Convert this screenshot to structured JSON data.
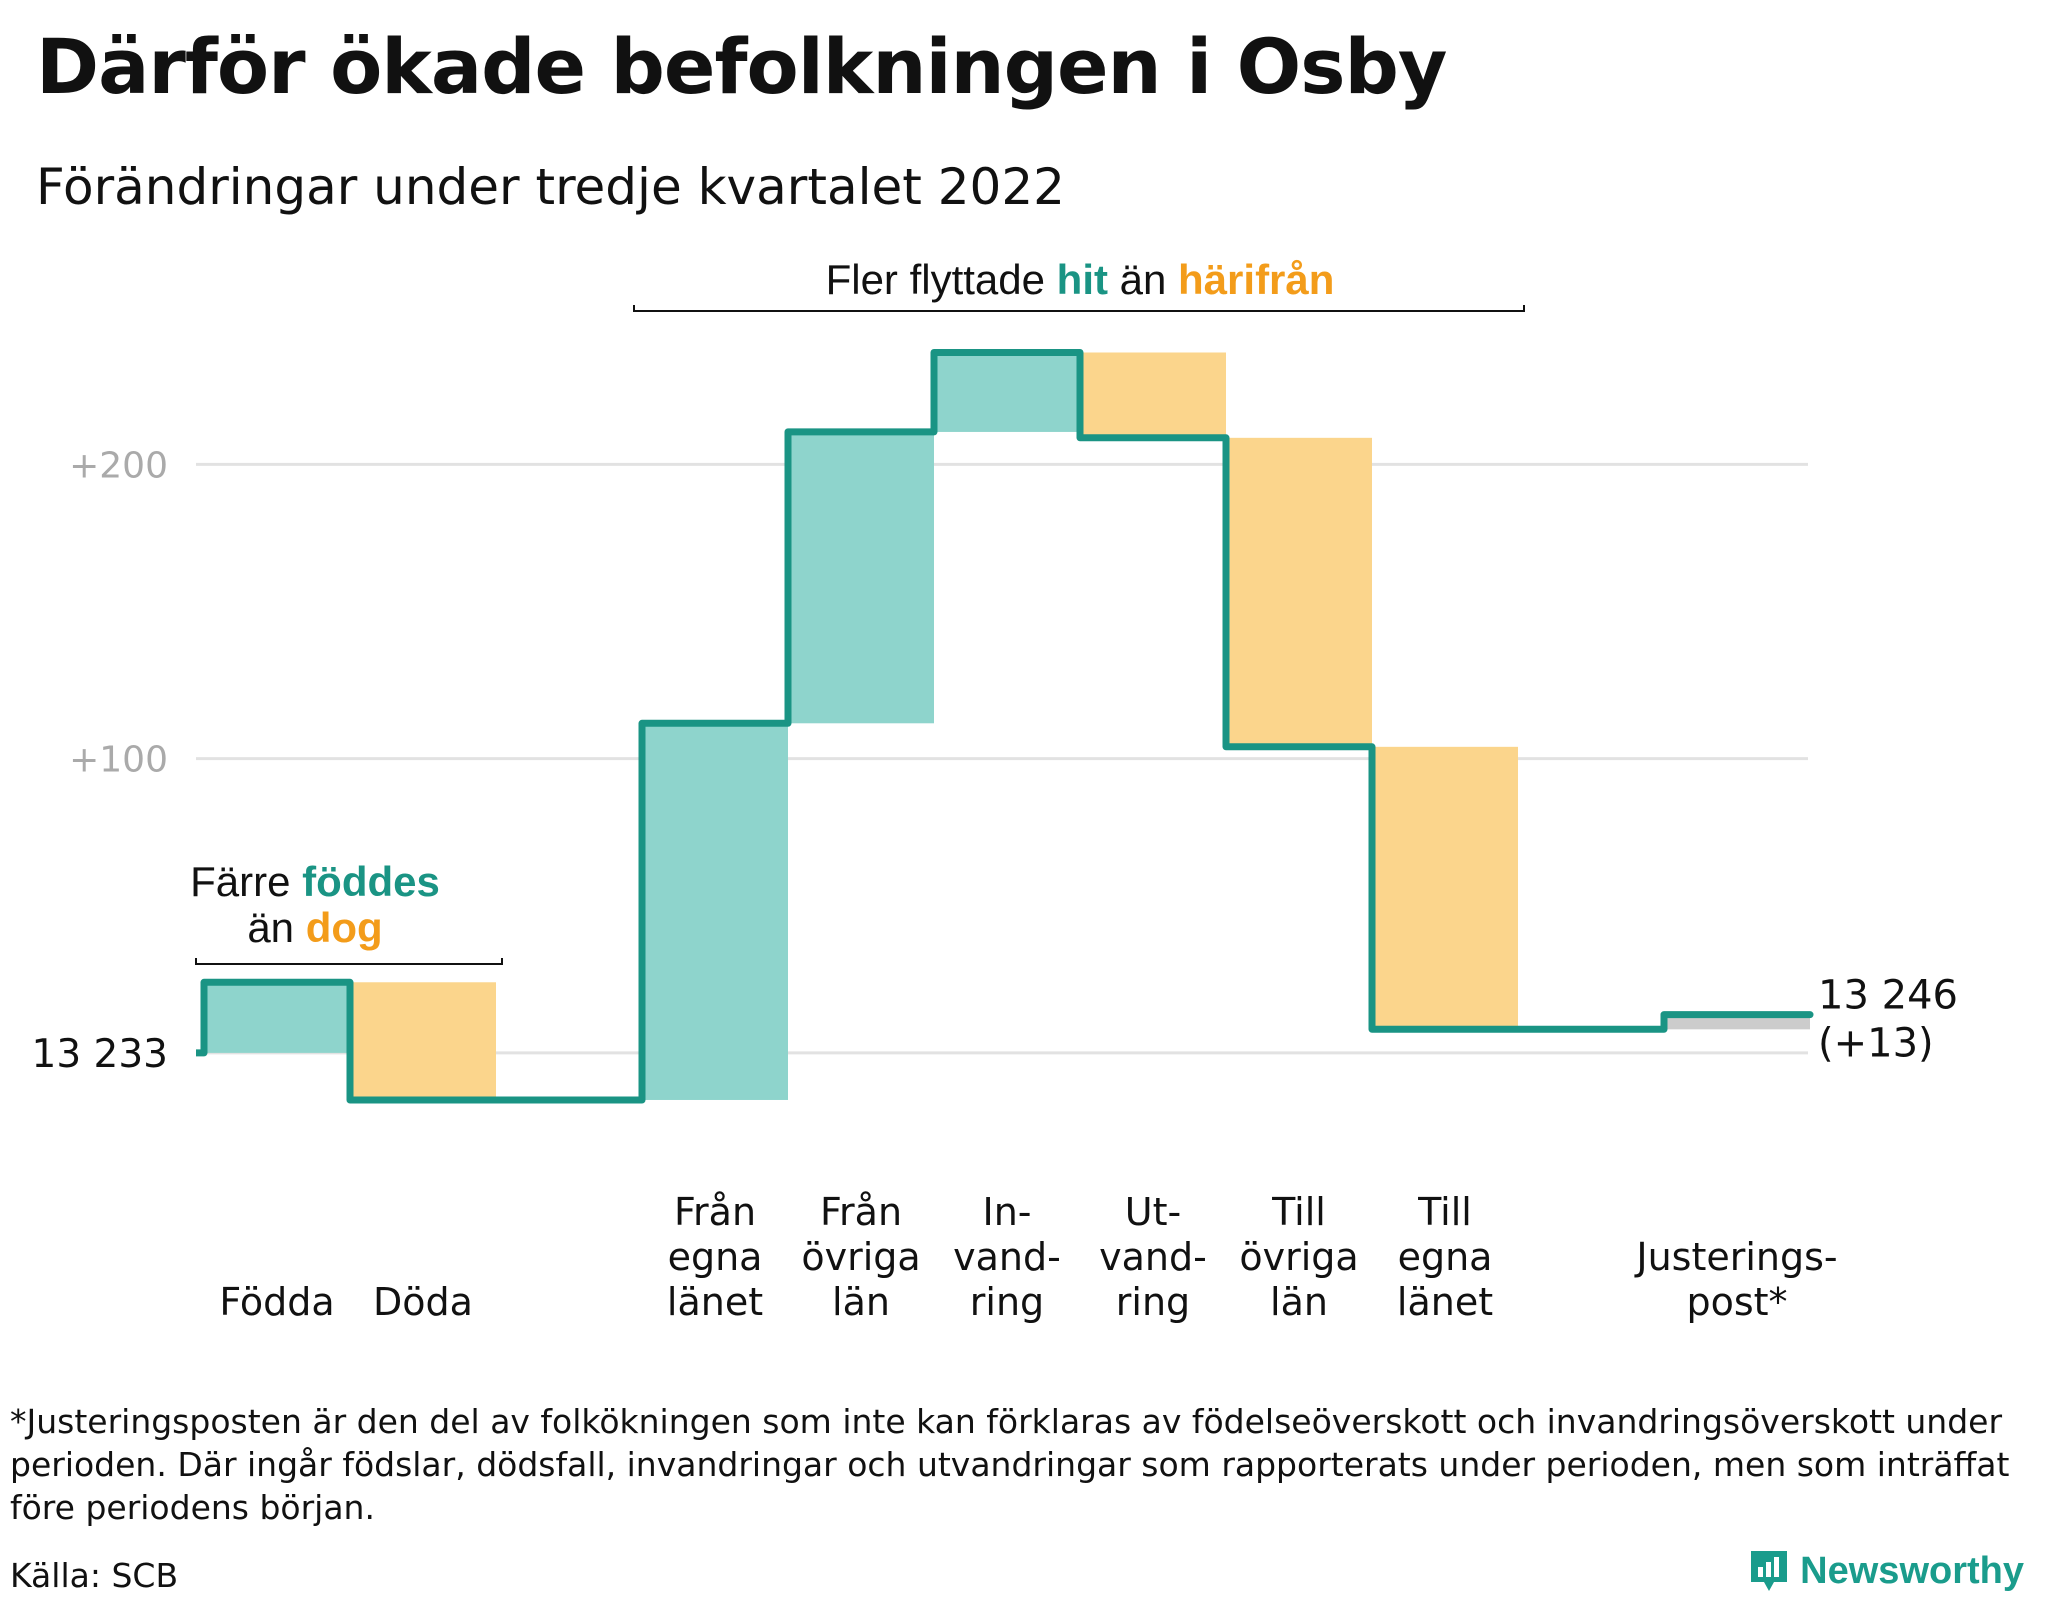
{
  "title": "Därför ökade befolkningen i Osby",
  "subtitle": "Förändringar under tredje kvartalet 2022",
  "colors": {
    "increase": "#8ed4cc",
    "decrease": "#fbd58c",
    "adjustment": "#cccccc",
    "line": "#1a9484",
    "teal_text": "#1a9484",
    "orange_text": "#f39c1a",
    "grid": "#e2e2e2",
    "tick": "#aaaaaa"
  },
  "annotations": {
    "births_deaths": {
      "p1": "Färre ",
      "hl1": "föddes",
      "p2": "än ",
      "hl2": "dog"
    },
    "migration": {
      "p1": "Fler flyttade ",
      "hl1": "hit",
      "p2": " än ",
      "hl2": "härifrån"
    }
  },
  "chart_data": {
    "type": "waterfall",
    "title": "Därför ökade befolkningen i Osby",
    "subtitle": "Förändringar under tredje kvartalet 2022",
    "start_value": 13233,
    "start_label": "13 233",
    "end_value": 13246,
    "end_label": "13 246",
    "end_change_label": "(+13)",
    "y_ticks": [
      {
        "value": 13433,
        "label": "+200"
      },
      {
        "value": 13333,
        "label": "+100"
      },
      {
        "value": 13233,
        "label": ""
      }
    ],
    "ylim": [
      13200,
      13480
    ],
    "grid": true,
    "steps": [
      {
        "category": [
          "Födda"
        ],
        "change": 24,
        "kind": "increase",
        "gap_after": false
      },
      {
        "category": [
          "Döda"
        ],
        "change": -40,
        "kind": "decrease",
        "gap_after": true
      },
      {
        "category": [
          "Från",
          "egna",
          "länet"
        ],
        "change": 128,
        "kind": "increase",
        "gap_after": false
      },
      {
        "category": [
          "Från",
          "övriga",
          "län"
        ],
        "change": 99,
        "kind": "increase",
        "gap_after": false
      },
      {
        "category": [
          "In-",
          "vand-",
          "ring"
        ],
        "change": 27,
        "kind": "increase",
        "gap_after": false
      },
      {
        "category": [
          "Ut-",
          "vand-",
          "ring"
        ],
        "change": -29,
        "kind": "decrease",
        "gap_after": false
      },
      {
        "category": [
          "Till",
          "övriga",
          "län"
        ],
        "change": -105,
        "kind": "decrease",
        "gap_after": false
      },
      {
        "category": [
          "Till",
          "egna",
          "länet"
        ],
        "change": -96,
        "kind": "decrease",
        "gap_after": true
      },
      {
        "category": [
          "Justerings-",
          "post*"
        ],
        "change": 5,
        "kind": "adjustment",
        "gap_after": false
      }
    ]
  },
  "footnote": "*Justeringsposten är den del av folkökningen som inte kan förklaras av födelseöverskott och invandringsöverskott under perioden. Där ingår födslar, dödsfall, invandringar och utvandringar som rapporterats under perioden, men som inträffat före periodens början.",
  "source": "Källa: SCB",
  "brand": {
    "name": "Newsworthy",
    "icon": "newsworthy-logo-icon"
  }
}
